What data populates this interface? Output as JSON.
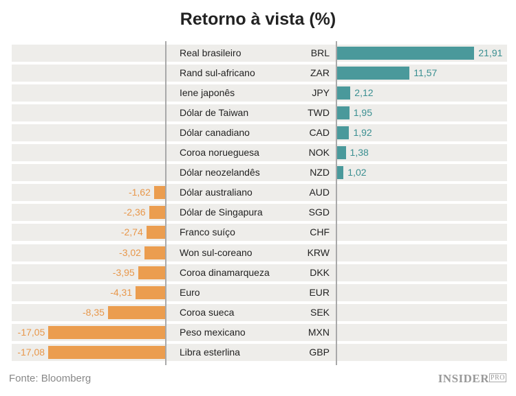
{
  "chart_data": {
    "type": "bar",
    "orientation": "horizontal",
    "title": "Retorno à vista (%)",
    "categories": [
      "Real brasileiro",
      "Rand sul-africano",
      "Iene japonês",
      "Dólar de Taiwan",
      "Dólar canadiano",
      "Coroa norueguesa",
      "Dólar neozelandês",
      "Dólar australiano",
      "Dólar de Singapura",
      "Franco suíço",
      "Won sul-coreano",
      "Coroa dinamarqueza",
      "Euro",
      "Coroa sueca",
      "Peso mexicano",
      "Libra esterlina"
    ],
    "codes": [
      "BRL",
      "ZAR",
      "JPY",
      "TWD",
      "CAD",
      "NOK",
      "NZD",
      "AUD",
      "SGD",
      "CHF",
      "KRW",
      "DKK",
      "EUR",
      "SEK",
      "MXN",
      "GBP"
    ],
    "values": [
      21.91,
      11.57,
      2.12,
      1.95,
      1.92,
      1.38,
      1.02,
      -1.62,
      -2.36,
      -2.74,
      -3.02,
      -3.95,
      -4.31,
      -8.35,
      -17.05,
      -17.08
    ],
    "labels": [
      "21,91",
      "11,57",
      "2,12",
      "1,95",
      "1,92",
      "1,38",
      "1,02",
      "-1,62",
      "-2,36",
      "-2,74",
      "-3,02",
      "-3,95",
      "-4,31",
      "-8,35",
      "-17,05",
      "-17,08"
    ],
    "colors": {
      "positive": "#4a999b",
      "negative": "#eb9d4f"
    },
    "grid": false
  },
  "footer": {
    "source": "Fonte: Bloomberg",
    "logo": "INSIDER",
    "logo_suffix": "PRO"
  }
}
